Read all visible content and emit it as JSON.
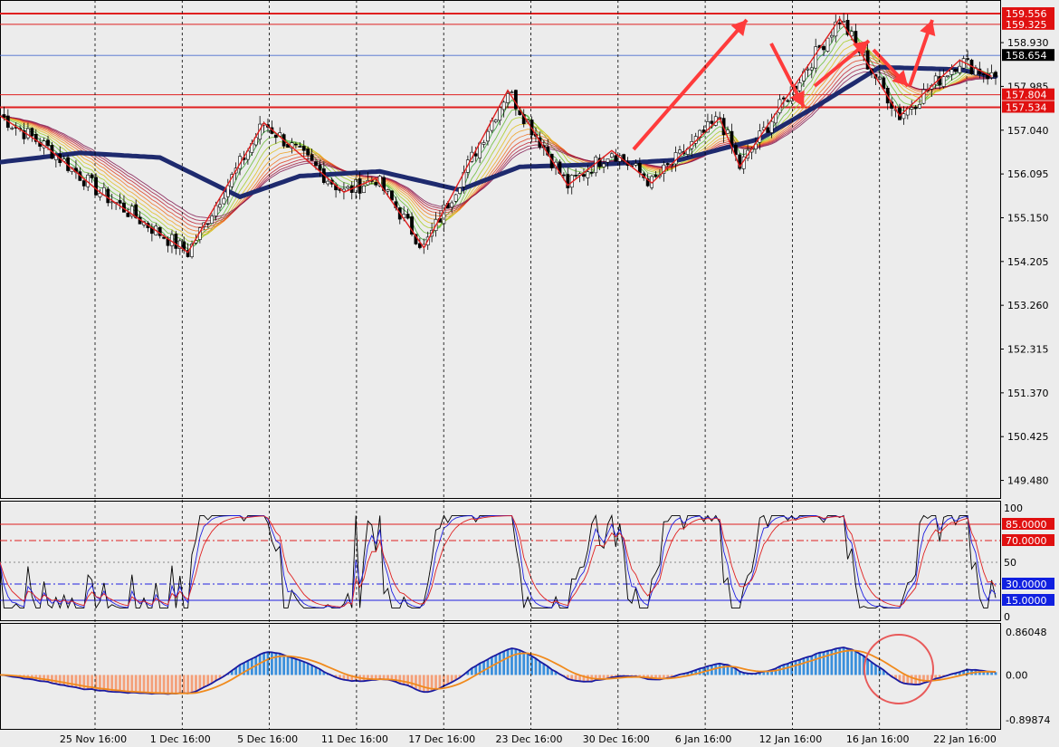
{
  "chart_data": [
    {
      "type": "candlestick",
      "panel": "price",
      "x_labels": [
        "25 Nov 16:00",
        "1 Dec 16:00",
        "5 Dec 16:00",
        "11 Dec 16:00",
        "17 Dec 16:00",
        "23 Dec 16:00",
        "30 Dec 16:00",
        "6 Jan 16:00",
        "12 Jan 16:00",
        "16 Jan 16:00",
        "22 Jan 16:00"
      ],
      "y_ticks": [
        "159.556",
        "159.325",
        "158.930",
        "158.654",
        "157.985",
        "157.804",
        "157.534",
        "157.040",
        "156.095",
        "155.150",
        "154.205",
        "153.260",
        "152.315",
        "151.370",
        "150.425",
        "149.480"
      ],
      "ylim": [
        149.1,
        159.85
      ],
      "current_price": "158.654",
      "price_badge_values": [
        "159.556",
        "159.325",
        "158.654",
        "157.804",
        "157.534"
      ],
      "horizontal_lines": [
        159.556,
        159.325,
        157.804,
        157.534
      ],
      "zigzag_points": [
        [
          0,
          157.35
        ],
        [
          12,
          156.65
        ],
        [
          25,
          155.7
        ],
        [
          47,
          154.4
        ],
        [
          66,
          157.2
        ],
        [
          86,
          155.7
        ],
        [
          94,
          156.0
        ],
        [
          106,
          154.5
        ],
        [
          127,
          157.9
        ],
        [
          142,
          155.85
        ],
        [
          153,
          156.6
        ],
        [
          163,
          155.9
        ],
        [
          180,
          157.3
        ],
        [
          185,
          156.25
        ],
        [
          210,
          159.45
        ],
        [
          225,
          157.35
        ],
        [
          240,
          158.55
        ],
        [
          248,
          158.2
        ]
      ],
      "ma_slow": [
        [
          0,
          156.35
        ],
        [
          20,
          156.55
        ],
        [
          40,
          156.45
        ],
        [
          60,
          155.6
        ],
        [
          75,
          156.05
        ],
        [
          95,
          156.15
        ],
        [
          115,
          155.75
        ],
        [
          130,
          156.25
        ],
        [
          150,
          156.3
        ],
        [
          170,
          156.4
        ],
        [
          190,
          156.85
        ],
        [
          205,
          157.6
        ],
        [
          220,
          158.4
        ],
        [
          240,
          158.35
        ],
        [
          248,
          158.2
        ]
      ],
      "annotation_arrows": "forecast zigzag (down then up)",
      "colors": {
        "background": "#ececec",
        "candle_up": "#ffffff",
        "candle_down": "#000000",
        "zigzag": "#e02020",
        "ma_slow": "#1e2a6e",
        "arrow": "#ff3b3b",
        "level_line": "#e02020",
        "price_line": "#4a6cd0"
      }
    },
    {
      "type": "line",
      "panel": "stochastic",
      "ylim": [
        0,
        100
      ],
      "y_ticks": [
        "100",
        "50",
        "0"
      ],
      "levels": [
        "85.0000",
        "70.0000",
        "30.0000",
        "15.0000"
      ],
      "level_colors": {
        "85": "#e02020",
        "70": "#e02020",
        "30": "#2020e0",
        "15": "#2020e0"
      },
      "series_colors": [
        "#000000",
        "#e02020",
        "#2020e0"
      ]
    },
    {
      "type": "bar",
      "panel": "macd",
      "ylim": [
        -0.89874,
        0.86048
      ],
      "y_ticks": [
        "0.86048",
        "0.00",
        "-0.89874"
      ],
      "positive_color": "#3a8fdc",
      "negative_color": "#f4a07a",
      "signal_colors": {
        "macd": "#1a1aa0",
        "signal": "#f08a1c"
      },
      "highlight_circle": "last bars"
    }
  ]
}
